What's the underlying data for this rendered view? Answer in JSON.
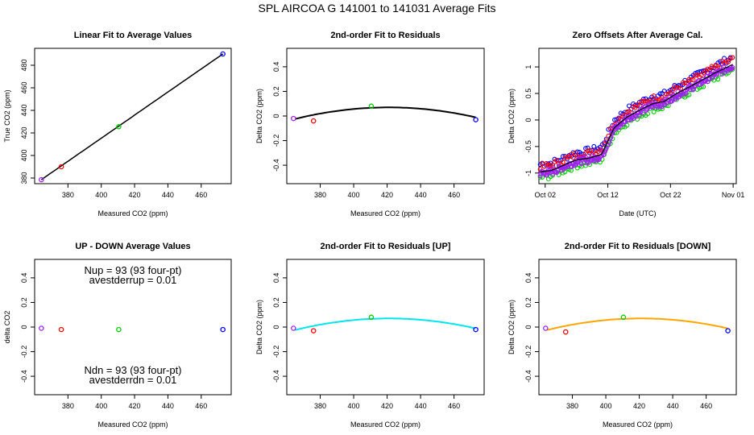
{
  "title": "SPL   AIRCOA G   141001 to 141031   Average Fits",
  "colors": {
    "purple": "#a020f0",
    "red": "#ff0000",
    "green": "#00cd00",
    "blue": "#0000ff",
    "fit": "#000000",
    "fit_up": "#00e5ee",
    "fit_down": "#ffa500"
  },
  "chart_data": [
    {
      "id": "linear",
      "type": "scatter",
      "title": "Linear Fit to Average Values",
      "xlabel": "Measured CO2 (ppm)",
      "ylabel": "True CO2 (ppm)",
      "xlim": [
        360,
        478
      ],
      "ylim": [
        375,
        495
      ],
      "xticks": [
        380,
        400,
        420,
        440,
        460
      ],
      "yticks": [
        380,
        400,
        420,
        440,
        460,
        480
      ],
      "points": [
        {
          "x": 364.0,
          "y": 378.5,
          "color": "purple"
        },
        {
          "x": 376.0,
          "y": 390.0,
          "color": "red"
        },
        {
          "x": 410.5,
          "y": 425.5,
          "color": "green"
        },
        {
          "x": 473.0,
          "y": 490.0,
          "color": "blue"
        }
      ],
      "fit": {
        "kind": "line",
        "x0": 364.0,
        "x1": 473.0,
        "y0": 378.5,
        "y1": 490.0,
        "color": "fit"
      }
    },
    {
      "id": "resid",
      "type": "scatter",
      "title": "2nd-order Fit to Residuals",
      "xlabel": "Measured CO2 (ppm)",
      "ylabel": "Delta CO2 (ppm)",
      "xlim": [
        360,
        478
      ],
      "ylim": [
        -0.55,
        0.55
      ],
      "xticks": [
        380,
        400,
        420,
        440,
        460
      ],
      "yticks": [
        -0.4,
        -0.2,
        0.0,
        0.2,
        0.4
      ],
      "points": [
        {
          "x": 364.0,
          "y": -0.02,
          "color": "purple"
        },
        {
          "x": 376.0,
          "y": -0.04,
          "color": "red"
        },
        {
          "x": 410.5,
          "y": 0.08,
          "color": "green"
        },
        {
          "x": 473.0,
          "y": -0.03,
          "color": "blue"
        }
      ],
      "fit": {
        "kind": "quad",
        "x0": 365,
        "x1": 473,
        "vx": 421,
        "vy": 0.07,
        "k": 3e-05,
        "color": "fit"
      }
    },
    {
      "id": "offsets",
      "type": "line",
      "title": "Zero Offsets After Average Cal.",
      "xlabel": "Date (UTC)",
      "ylabel": "Delta CO2 (ppm)",
      "xlim": [
        0,
        31.5
      ],
      "ylim": [
        -1.2,
        1.35
      ],
      "xticks": [
        1,
        11,
        21,
        31
      ],
      "xticklabels": [
        "Oct 02",
        "Oct 12",
        "Oct 22",
        "Nov 01"
      ],
      "yticks": [
        -1.0,
        -0.5,
        0.0,
        0.5,
        1.0
      ],
      "trend": {
        "days": [
          0,
          2,
          4,
          6,
          8,
          10,
          12,
          14,
          16,
          18,
          20,
          22,
          24,
          26,
          28,
          31
        ],
        "values": [
          -0.98,
          -0.95,
          -0.85,
          -0.75,
          -0.72,
          -0.65,
          -0.15,
          0.05,
          0.18,
          0.3,
          0.35,
          0.5,
          0.62,
          0.75,
          0.88,
          1.05
        ]
      },
      "series_offsets": [
        {
          "name": "purple",
          "color": "purple",
          "offset": -0.03
        },
        {
          "name": "red",
          "color": "red",
          "offset": 0.1
        },
        {
          "name": "green",
          "color": "green",
          "offset": -0.1
        },
        {
          "name": "blue",
          "color": "blue",
          "offset": 0.14
        }
      ]
    },
    {
      "id": "updown",
      "type": "scatter",
      "title": "UP - DOWN Average Values",
      "xlabel": "Measured CO2 (ppm)",
      "ylabel": "delta CO2",
      "xlim": [
        360,
        478
      ],
      "ylim": [
        -0.55,
        0.55
      ],
      "xticks": [
        380,
        400,
        420,
        440,
        460
      ],
      "yticks": [
        -0.4,
        -0.2,
        0.0,
        0.2,
        0.4
      ],
      "points": [
        {
          "x": 364.0,
          "y": -0.01,
          "color": "purple"
        },
        {
          "x": 376.0,
          "y": -0.02,
          "color": "red"
        },
        {
          "x": 410.5,
          "y": -0.02,
          "color": "green"
        },
        {
          "x": 473.0,
          "y": -0.02,
          "color": "blue"
        }
      ],
      "annotations": {
        "nup": "Nup = 93 (93 four-pt)",
        "avestderrup": "avestderrup =  0.01",
        "ndn": "Ndn = 93 (93 four-pt)",
        "avestderrdn": "avestderrdn =  0.01"
      }
    },
    {
      "id": "resid_up",
      "type": "scatter",
      "title": "2nd-order Fit to Residuals [UP]",
      "xlabel": "Measured CO2 (ppm)",
      "ylabel": "Delta CO2 (ppm)",
      "xlim": [
        360,
        478
      ],
      "ylim": [
        -0.55,
        0.55
      ],
      "xticks": [
        380,
        400,
        420,
        440,
        460
      ],
      "yticks": [
        -0.4,
        -0.2,
        0.0,
        0.2,
        0.4
      ],
      "points": [
        {
          "x": 364.0,
          "y": -0.01,
          "color": "purple"
        },
        {
          "x": 376.0,
          "y": -0.03,
          "color": "red"
        },
        {
          "x": 410.5,
          "y": 0.08,
          "color": "green"
        },
        {
          "x": 473.0,
          "y": -0.02,
          "color": "blue"
        }
      ],
      "fit": {
        "kind": "quad",
        "x0": 365,
        "x1": 473,
        "vx": 421,
        "vy": 0.07,
        "k": 3e-05,
        "color": "fit_up"
      }
    },
    {
      "id": "resid_down",
      "type": "scatter",
      "title": "2nd-order Fit to Residuals [DOWN]",
      "xlabel": "Measured CO2 (ppm)",
      "ylabel": "Delta CO2 (ppm)",
      "xlim": [
        360,
        478
      ],
      "ylim": [
        -0.55,
        0.55
      ],
      "xticks": [
        380,
        400,
        420,
        440,
        460
      ],
      "yticks": [
        -0.4,
        -0.2,
        0.0,
        0.2,
        0.4
      ],
      "points": [
        {
          "x": 364.0,
          "y": -0.01,
          "color": "purple"
        },
        {
          "x": 376.0,
          "y": -0.04,
          "color": "red"
        },
        {
          "x": 410.5,
          "y": 0.08,
          "color": "green"
        },
        {
          "x": 473.0,
          "y": -0.03,
          "color": "blue"
        }
      ],
      "fit": {
        "kind": "quad",
        "x0": 365,
        "x1": 473,
        "vx": 421,
        "vy": 0.07,
        "k": 3e-05,
        "color": "fit_down"
      }
    }
  ]
}
